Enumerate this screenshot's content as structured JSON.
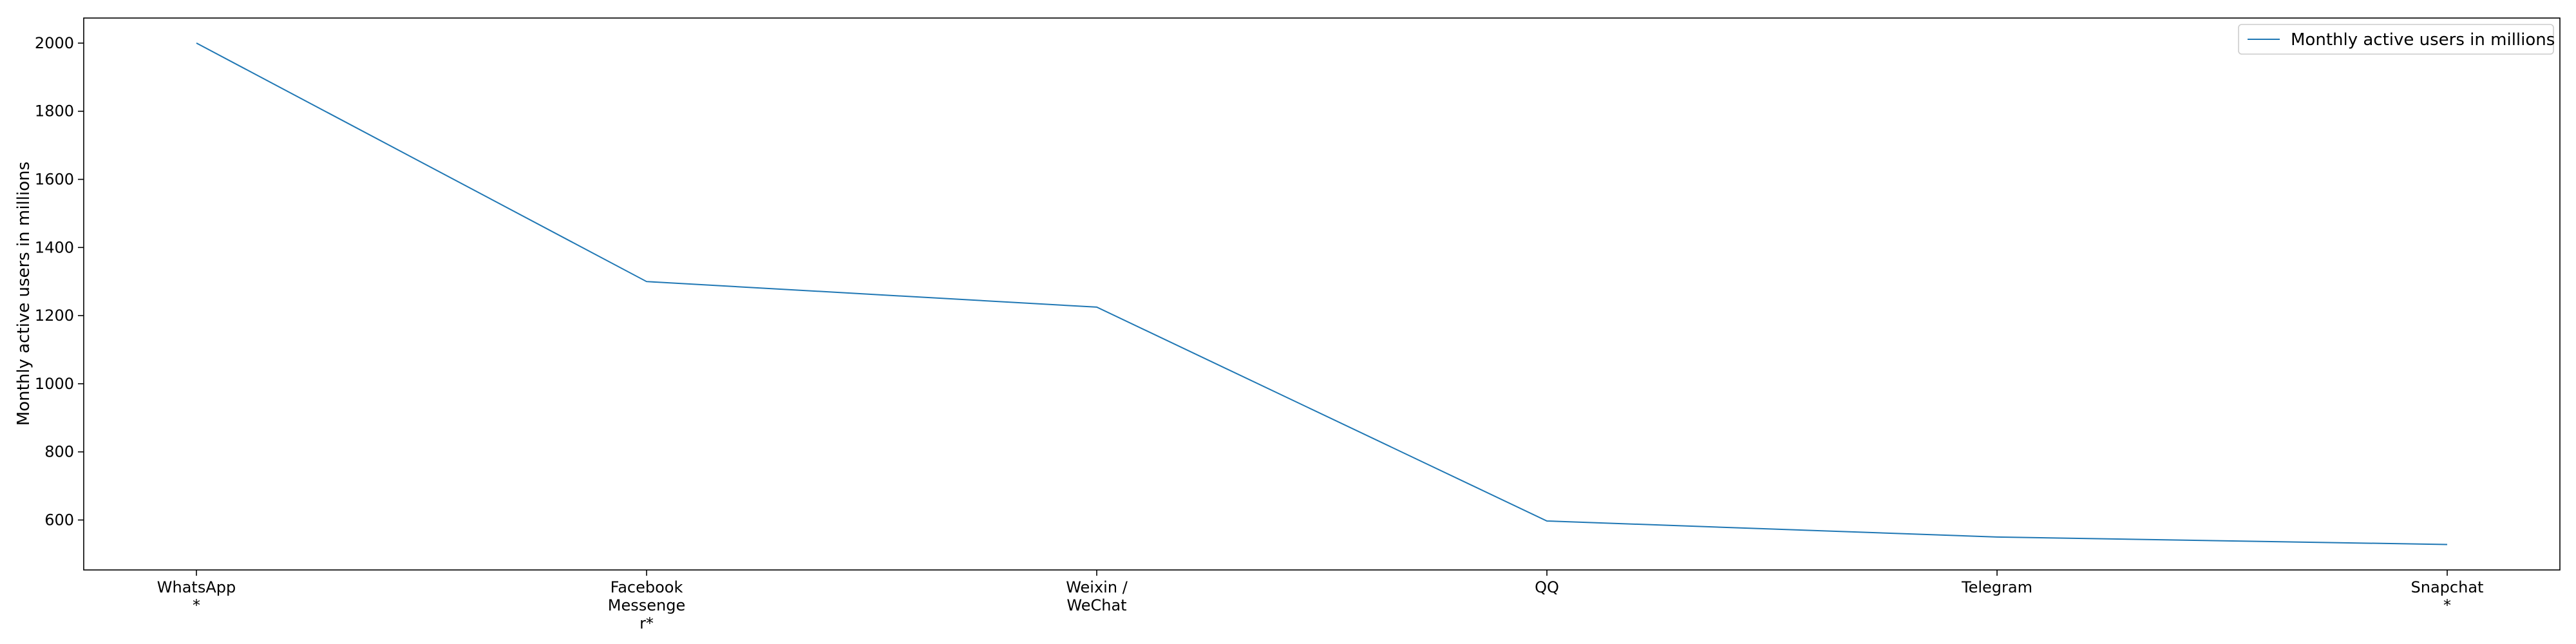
{
  "chart_data": {
    "type": "line",
    "categories": [
      "WhatsApp\n*",
      "Facebook\nMessenge\nr*",
      "Weixin /\nWeChat",
      "QQ",
      "Telegram",
      "Snapchat\n*"
    ],
    "series": [
      {
        "name": "Monthly active users in millions",
        "values": [
          2000,
          1300,
          1225,
          597,
          550,
          528
        ],
        "color": "#1f77b4"
      }
    ],
    "title": "",
    "xlabel": "",
    "ylabel": "Monthly active users in millions",
    "ylim": [
      453.4,
      2073.6
    ],
    "yticks": [
      600,
      800,
      1000,
      1200,
      1400,
      1600,
      1800,
      2000
    ],
    "grid": false,
    "legend_position": "upper right"
  }
}
